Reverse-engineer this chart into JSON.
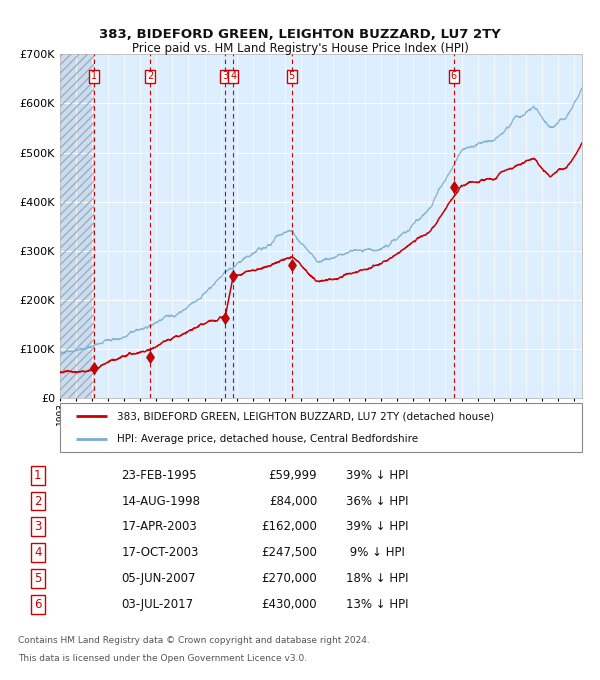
{
  "title_line1": "383, BIDEFORD GREEN, LEIGHTON BUZZARD, LU7 2TY",
  "title_line2": "Price paid vs. HM Land Registry's House Price Index (HPI)",
  "legend_label_red": "383, BIDEFORD GREEN, LEIGHTON BUZZARD, LU7 2TY (detached house)",
  "legend_label_blue": "HPI: Average price, detached house, Central Bedfordshire",
  "footer_line1": "Contains HM Land Registry data © Crown copyright and database right 2024.",
  "footer_line2": "This data is licensed under the Open Government Licence v3.0.",
  "transactions": [
    {
      "num": 1,
      "date_f": 1995.145,
      "price": 59999
    },
    {
      "num": 2,
      "date_f": 1998.62,
      "price": 84000
    },
    {
      "num": 3,
      "date_f": 2003.295,
      "price": 162000
    },
    {
      "num": 4,
      "date_f": 2003.792,
      "price": 247500
    },
    {
      "num": 5,
      "date_f": 2007.425,
      "price": 270000
    },
    {
      "num": 6,
      "date_f": 2017.503,
      "price": 430000
    }
  ],
  "table_rows": [
    {
      "num": 1,
      "date_str": "23-FEB-1995",
      "price_str": "£59,999",
      "pct_str": "39% ↓ HPI"
    },
    {
      "num": 2,
      "date_str": "14-AUG-1998",
      "price_str": "£84,000",
      "pct_str": "36% ↓ HPI"
    },
    {
      "num": 3,
      "date_str": "17-APR-2003",
      "price_str": "£162,000",
      "pct_str": "39% ↓ HPI"
    },
    {
      "num": 4,
      "date_str": "17-OCT-2003",
      "price_str": "£247,500",
      "pct_str": " 9% ↓ HPI"
    },
    {
      "num": 5,
      "date_str": "05-JUN-2007",
      "price_str": "£270,000",
      "pct_str": "18% ↓ HPI"
    },
    {
      "num": 6,
      "date_str": "03-JUL-2017",
      "price_str": "£430,000",
      "pct_str": "13% ↓ HPI"
    }
  ],
  "yticks": [
    0,
    100000,
    200000,
    300000,
    400000,
    500000,
    600000,
    700000
  ],
  "ytick_labels": [
    "£0",
    "£100K",
    "£200K",
    "£300K",
    "£400K",
    "£500K",
    "£600K",
    "£700K"
  ],
  "red_color": "#cc0000",
  "blue_color": "#7aaccc",
  "background_color": "#ddeeff",
  "grid_color": "#ffffff"
}
